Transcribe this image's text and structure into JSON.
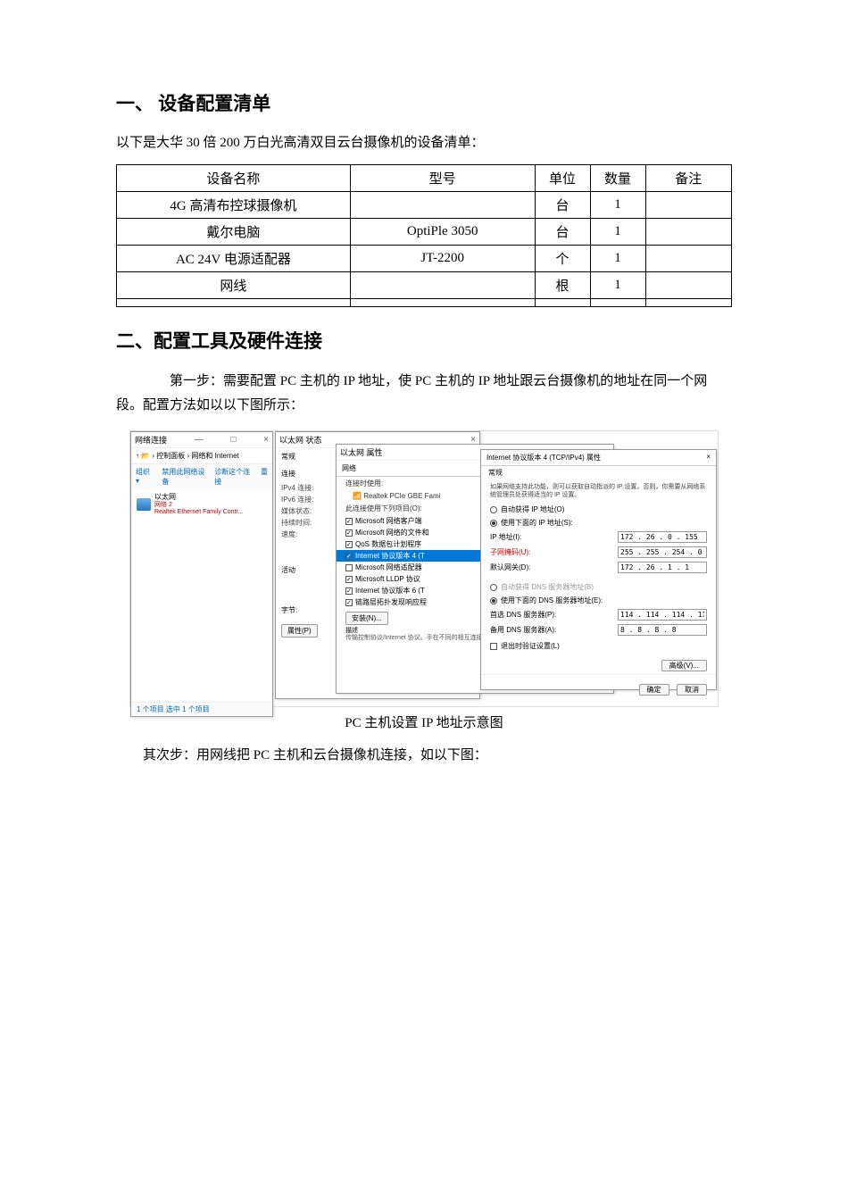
{
  "section1": {
    "heading": "一、 设备配置清单",
    "intro": "以下是大华 30 倍 200 万白光高清双目云台摄像机的设备清单：",
    "table": {
      "columns": [
        "设备名称",
        "型号",
        "单位",
        "数量",
        "备注"
      ],
      "rows": [
        [
          "4G 高清布控球摄像机",
          "",
          "台",
          "1",
          ""
        ],
        [
          "戴尔电脑",
          "OptiPle 3050",
          "台",
          "1",
          ""
        ],
        [
          "AC 24V 电源适配器",
          "JT-2200",
          "个",
          "1",
          ""
        ],
        [
          "网线",
          "",
          "根",
          "1",
          ""
        ],
        [
          "",
          "",
          "",
          "",
          ""
        ]
      ]
    }
  },
  "section2": {
    "heading": "二、配置工具及硬件连接",
    "step1": "第一步：需要配置 PC 主机的 IP 地址，使 PC 主机的 IP 地址跟云台摄像机的地址在同一个网段。配置方法如以以下图所示：",
    "caption": "PC 主机设置 IP 地址示意图",
    "step2": "其次步：用网线把 PC 主机和云台摄像机连接，如以下图："
  },
  "screenshot": {
    "w1": {
      "title": "网络连接",
      "breadcrumb": "↑ 📂 › 控制面板 › 网络和 Internet",
      "toolbar": [
        "组织 ▾",
        "禁用此网络设备",
        "诊断这个连接",
        "重"
      ],
      "adapter_name": "以太网",
      "adapter_net": "网络 2",
      "adapter_dev": "Realtek Ethernet Family Contr...",
      "status": "1 个项目    选中 1 个项目"
    },
    "marks": {
      "m1": "1",
      "m2": "2"
    },
    "w2": {
      "title": "以太网 状态",
      "tab": "常规",
      "sec_label": "连接",
      "pairs": [
        [
          "IPv4 连接:",
          ""
        ],
        [
          "IPv6 连接:",
          ""
        ],
        [
          "媒体状态:",
          ""
        ],
        [
          "持续时间:",
          ""
        ],
        [
          "速度:",
          ""
        ]
      ],
      "btn_detail": "详细信息(E)...",
      "activity_label": "活动",
      "bytes_label": "字节:",
      "btn_props": "属性(P)"
    },
    "w3": {
      "title": "以太网 属性",
      "tab": "网络",
      "line1": "连接时使用:",
      "line2": "Realtek PCIe GBE Fami",
      "list_label": "此连接使用下列项目(O):",
      "items": [
        {
          "checked": true,
          "highlighted": false,
          "label": "Microsoft 网络客户端"
        },
        {
          "checked": true,
          "highlighted": false,
          "label": "Microsoft 网络的文件和"
        },
        {
          "checked": true,
          "highlighted": false,
          "label": "QoS 数据包计划程序"
        },
        {
          "checked": true,
          "highlighted": true,
          "label": "Internet 协议版本 4 (T"
        },
        {
          "checked": false,
          "highlighted": false,
          "label": "Microsoft 网络适配器"
        },
        {
          "checked": true,
          "highlighted": false,
          "label": "Microsoft LLDP 协议"
        },
        {
          "checked": true,
          "highlighted": false,
          "label": "Internet 协议版本 6 (T"
        },
        {
          "checked": true,
          "highlighted": false,
          "label": "链路层拓扑发现响应程"
        }
      ],
      "btn_install": "安装(N)...",
      "desc_label": "描述",
      "desc_text": "传输控制协议/Internet 协议。手在不同的相互连接的网络上"
    },
    "w4": {
      "title": "Internet 协议版本 4 (TCP/IPv4) 属性",
      "tab": "常规",
      "note": "如果网络支持此功能，则可以获取自动指派的 IP 设置。否则，你需要从网络系统管理员处获得适当的 IP 设置。",
      "radio_auto_ip": "自动获得 IP 地址(O)",
      "radio_use_ip": "使用下面的 IP 地址(S):",
      "ip_label": "IP 地址(I):",
      "ip_value": "172 . 26 . 0 . 155",
      "mask_label": "子网掩码(U):",
      "mask_value": "255 . 255 . 254 . 0",
      "gateway_label": "默认网关(D):",
      "gateway_value": "172 . 26 . 1 . 1",
      "radio_auto_dns": "自动获得 DNS 服务器地址(B)",
      "radio_use_dns": "使用下面的 DNS 服务器地址(E):",
      "dns1_label": "首选 DNS 服务器(P):",
      "dns1_value": "114 . 114 . 114 . 114",
      "dns2_label": "备用 DNS 服务器(A):",
      "dns2_value": "8 . 8 . 8 . 8",
      "validate": "退出时验证设置(L)",
      "btn_adv": "高级(V)...",
      "btn_ok": "确定",
      "btn_cancel": "取消"
    }
  }
}
